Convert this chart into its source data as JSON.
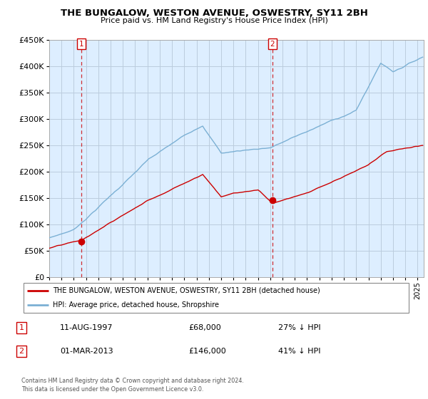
{
  "title": "THE BUNGALOW, WESTON AVENUE, OSWESTRY, SY11 2BH",
  "subtitle": "Price paid vs. HM Land Registry's House Price Index (HPI)",
  "legend_line1": "THE BUNGALOW, WESTON AVENUE, OSWESTRY, SY11 2BH (detached house)",
  "legend_line2": "HPI: Average price, detached house, Shropshire",
  "footer1": "Contains HM Land Registry data © Crown copyright and database right 2024.",
  "footer2": "This data is licensed under the Open Government Licence v3.0.",
  "annotation1_date": "11-AUG-1997",
  "annotation1_price": "£68,000",
  "annotation1_hpi": "27% ↓ HPI",
  "annotation2_date": "01-MAR-2013",
  "annotation2_price": "£146,000",
  "annotation2_hpi": "41% ↓ HPI",
  "red_color": "#cc0000",
  "blue_color": "#7bb0d4",
  "plot_bg_color": "#ddeeff",
  "grid_color": "#bbccdd",
  "background_color": "#ffffff",
  "ylim": [
    0,
    450000
  ],
  "xlim_start": 1995.0,
  "xlim_end": 2025.5,
  "point1_x": 1997.617,
  "point1_y": 68000,
  "point2_x": 2013.167,
  "point2_y": 146000
}
